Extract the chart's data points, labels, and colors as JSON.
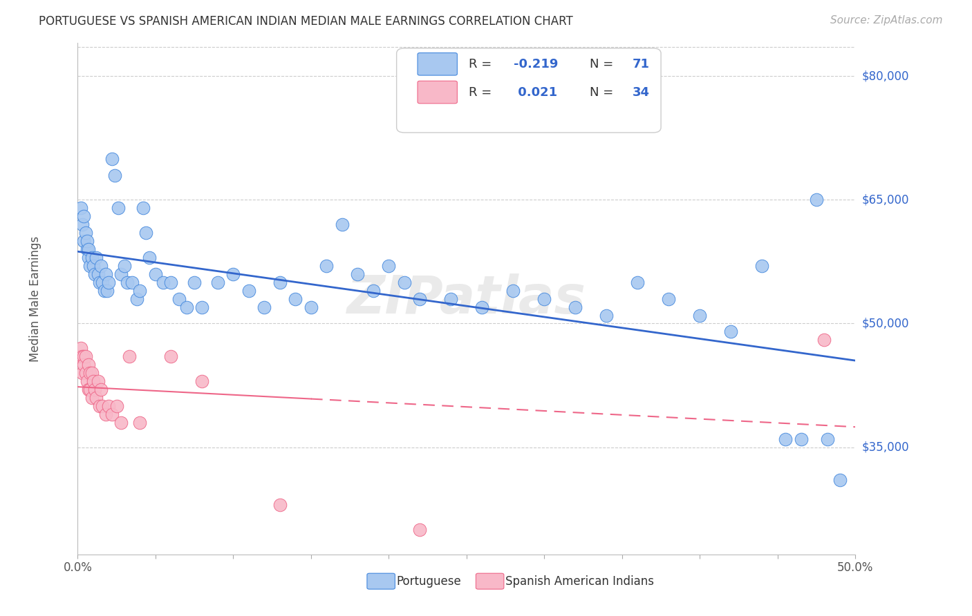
{
  "title": "PORTUGUESE VS SPANISH AMERICAN INDIAN MEDIAN MALE EARNINGS CORRELATION CHART",
  "source": "Source: ZipAtlas.com",
  "ylabel": "Median Male Earnings",
  "y_ticks": [
    35000,
    50000,
    65000,
    80000
  ],
  "y_tick_labels": [
    "$35,000",
    "$50,000",
    "$65,000",
    "$80,000"
  ],
  "xlim": [
    0.0,
    0.5
  ],
  "ylim": [
    22000,
    84000
  ],
  "blue_R": "-0.219",
  "blue_N": "71",
  "pink_R": "0.021",
  "pink_N": "34",
  "blue_fill": "#A8C8F0",
  "pink_fill": "#F8B8C8",
  "blue_edge": "#4488DD",
  "pink_edge": "#EE6688",
  "blue_line": "#3366CC",
  "pink_line": "#EE6688",
  "watermark": "ZIPatlas",
  "blue_x": [
    0.002,
    0.003,
    0.004,
    0.004,
    0.005,
    0.006,
    0.006,
    0.007,
    0.007,
    0.008,
    0.009,
    0.01,
    0.011,
    0.012,
    0.013,
    0.014,
    0.015,
    0.016,
    0.017,
    0.018,
    0.019,
    0.02,
    0.022,
    0.024,
    0.026,
    0.028,
    0.03,
    0.032,
    0.035,
    0.038,
    0.04,
    0.042,
    0.044,
    0.046,
    0.05,
    0.055,
    0.06,
    0.065,
    0.07,
    0.075,
    0.08,
    0.09,
    0.1,
    0.11,
    0.12,
    0.13,
    0.14,
    0.15,
    0.16,
    0.17,
    0.18,
    0.19,
    0.2,
    0.21,
    0.22,
    0.24,
    0.26,
    0.28,
    0.3,
    0.32,
    0.34,
    0.36,
    0.38,
    0.4,
    0.42,
    0.44,
    0.455,
    0.465,
    0.475,
    0.482,
    0.49
  ],
  "blue_y": [
    64000,
    62000,
    63000,
    60000,
    61000,
    59000,
    60000,
    58000,
    59000,
    57000,
    58000,
    57000,
    56000,
    58000,
    56000,
    55000,
    57000,
    55000,
    54000,
    56000,
    54000,
    55000,
    70000,
    68000,
    64000,
    56000,
    57000,
    55000,
    55000,
    53000,
    54000,
    64000,
    61000,
    58000,
    56000,
    55000,
    55000,
    53000,
    52000,
    55000,
    52000,
    55000,
    56000,
    54000,
    52000,
    55000,
    53000,
    52000,
    57000,
    62000,
    56000,
    54000,
    57000,
    55000,
    53000,
    53000,
    52000,
    54000,
    53000,
    52000,
    51000,
    55000,
    53000,
    51000,
    49000,
    57000,
    36000,
    36000,
    65000,
    36000,
    31000
  ],
  "pink_x": [
    0.001,
    0.002,
    0.003,
    0.003,
    0.004,
    0.004,
    0.005,
    0.005,
    0.006,
    0.007,
    0.007,
    0.008,
    0.008,
    0.009,
    0.009,
    0.01,
    0.011,
    0.012,
    0.013,
    0.014,
    0.015,
    0.016,
    0.018,
    0.02,
    0.022,
    0.025,
    0.028,
    0.033,
    0.04,
    0.06,
    0.08,
    0.13,
    0.22,
    0.48
  ],
  "pink_y": [
    46000,
    47000,
    46000,
    44000,
    46000,
    45000,
    44000,
    46000,
    43000,
    45000,
    42000,
    44000,
    42000,
    44000,
    41000,
    43000,
    42000,
    41000,
    43000,
    40000,
    42000,
    40000,
    39000,
    40000,
    39000,
    40000,
    38000,
    46000,
    38000,
    46000,
    43000,
    28000,
    25000,
    48000
  ]
}
